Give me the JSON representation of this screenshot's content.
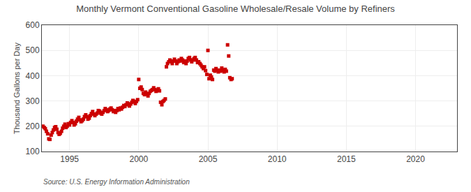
{
  "chart_data": {
    "type": "scatter",
    "title": "Monthly Vermont Conventional Gasoline Wholesale/Resale Volume by Refiners",
    "ylabel": "Thousand Gallons per Day",
    "annotations": [
      "Source: U.S. Energy Information Administration"
    ],
    "color": "#cc0000",
    "marker": "square",
    "grid": true,
    "xlim": [
      1993.0,
      2023.0
    ],
    "ylim": [
      100,
      600
    ],
    "xticks": [
      1995,
      2000,
      2005,
      2010,
      2015,
      2020
    ],
    "yticks": [
      100,
      200,
      300,
      400,
      500,
      600
    ],
    "x": [
      1993.08,
      1993.17,
      1993.25,
      1993.33,
      1993.42,
      1993.5,
      1993.58,
      1993.67,
      1993.75,
      1993.83,
      1993.92,
      1994.0,
      1994.08,
      1994.17,
      1994.25,
      1994.33,
      1994.42,
      1994.5,
      1994.58,
      1994.67,
      1994.75,
      1994.83,
      1994.92,
      1995.0,
      1995.08,
      1995.17,
      1995.25,
      1995.33,
      1995.42,
      1995.5,
      1995.58,
      1995.67,
      1995.75,
      1995.83,
      1995.92,
      1996.0,
      1996.08,
      1996.17,
      1996.25,
      1996.33,
      1996.42,
      1996.5,
      1996.58,
      1996.67,
      1996.75,
      1996.83,
      1996.92,
      1997.0,
      1997.08,
      1997.17,
      1997.25,
      1997.33,
      1997.42,
      1997.5,
      1997.58,
      1997.67,
      1997.75,
      1997.83,
      1997.92,
      1998.0,
      1998.08,
      1998.17,
      1998.25,
      1998.33,
      1998.42,
      1998.5,
      1998.58,
      1998.67,
      1998.75,
      1998.83,
      1998.92,
      1999.0,
      1999.08,
      1999.17,
      1999.25,
      1999.33,
      1999.42,
      1999.5,
      1999.58,
      1999.67,
      1999.75,
      1999.83,
      1999.92,
      2000.0,
      2000.08,
      2000.17,
      2000.25,
      2000.33,
      2000.42,
      2000.5,
      2000.58,
      2000.67,
      2000.75,
      2000.83,
      2000.92,
      2001.0,
      2001.08,
      2001.17,
      2001.25,
      2001.33,
      2001.42,
      2001.5,
      2001.58,
      2001.67,
      2001.75,
      2001.83,
      2001.92,
      2002.0,
      2002.08,
      2002.17,
      2002.25,
      2002.33,
      2002.42,
      2002.5,
      2002.58,
      2002.67,
      2002.75,
      2002.83,
      2002.92,
      2003.0,
      2003.08,
      2003.17,
      2003.25,
      2003.33,
      2003.42,
      2003.5,
      2003.58,
      2003.67,
      2003.75,
      2003.83,
      2003.92,
      2004.0,
      2004.08,
      2004.17,
      2004.25,
      2004.33,
      2004.42,
      2004.5,
      2004.58,
      2004.67,
      2004.75,
      2004.83,
      2004.92,
      2005.0,
      2005.08,
      2005.17,
      2005.25,
      2005.33,
      2005.42,
      2005.5,
      2005.58,
      2005.67,
      2005.75,
      2005.83,
      2005.92,
      2006.0,
      2006.08,
      2006.17,
      2006.25,
      2006.33,
      2006.42,
      2006.5,
      2006.58,
      2006.67,
      2006.75
    ],
    "values": [
      200,
      195,
      190,
      180,
      170,
      150,
      148,
      165,
      175,
      185,
      195,
      198,
      188,
      175,
      168,
      172,
      180,
      192,
      200,
      208,
      195,
      200,
      210,
      205,
      215,
      222,
      215,
      205,
      210,
      220,
      228,
      235,
      225,
      218,
      222,
      228,
      238,
      245,
      238,
      228,
      232,
      242,
      250,
      258,
      248,
      242,
      248,
      252,
      262,
      260,
      252,
      248,
      255,
      262,
      270,
      265,
      258,
      262,
      268,
      272,
      265,
      258,
      262,
      255,
      262,
      270,
      265,
      272,
      268,
      275,
      282,
      278,
      285,
      292,
      288,
      280,
      288,
      295,
      302,
      298,
      290,
      298,
      305,
      385,
      350,
      355,
      345,
      330,
      325,
      335,
      328,
      320,
      330,
      338,
      342,
      345,
      352,
      345,
      338,
      342,
      348,
      340,
      295,
      285,
      298,
      302,
      308,
      435,
      448,
      455,
      462,
      455,
      448,
      458,
      465,
      458,
      448,
      455,
      462,
      458,
      468,
      462,
      452,
      458,
      448,
      458,
      468,
      472,
      462,
      455,
      462,
      468,
      472,
      462,
      452,
      455,
      448,
      442,
      435,
      428,
      435,
      420,
      405,
      500,
      388,
      402,
      395,
      385,
      422,
      418,
      428,
      422,
      415,
      422,
      418,
      430,
      422,
      415,
      425,
      418,
      522,
      478,
      392,
      385,
      388
    ]
  }
}
